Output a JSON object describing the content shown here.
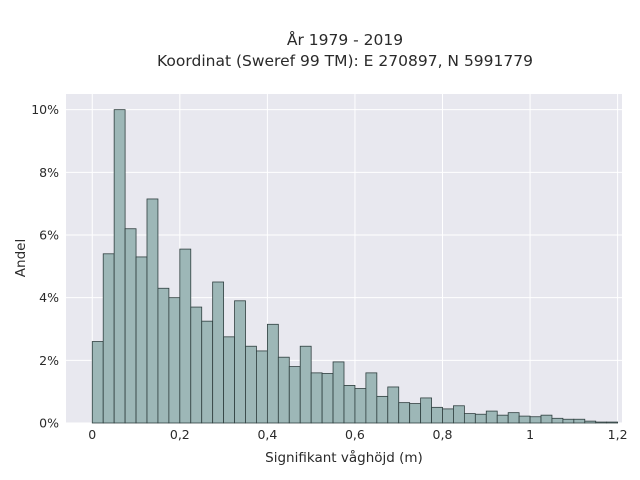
{
  "chart_data": {
    "type": "bar",
    "title_line1": "År 1979 - 2019",
    "title_line2": "Koordinat (Sweref 99 TM): E 270897, N 5991779",
    "xlabel": "Signifikant våghöjd (m)",
    "ylabel": "Andel",
    "xlim": [
      -0.06,
      1.21
    ],
    "ylim": [
      0,
      10.5
    ],
    "x_ticks": [
      0,
      0.2,
      0.4,
      0.6,
      0.8,
      1,
      1.2
    ],
    "x_tick_labels": [
      "0",
      "0,2",
      "0,4",
      "0,6",
      "0,8",
      "1",
      "1,2"
    ],
    "y_ticks": [
      0,
      2,
      4,
      6,
      8,
      10
    ],
    "y_tick_labels": [
      "0%",
      "2%",
      "4%",
      "6%",
      "8%",
      "10%"
    ],
    "bin_start": 0,
    "bin_width": 0.025,
    "values": [
      2.6,
      5.4,
      10.0,
      6.2,
      5.3,
      7.15,
      4.3,
      4.0,
      5.55,
      3.7,
      3.25,
      4.5,
      2.75,
      3.9,
      2.45,
      2.3,
      3.15,
      2.1,
      1.8,
      2.45,
      1.6,
      1.58,
      1.95,
      1.2,
      1.1,
      1.6,
      0.85,
      1.15,
      0.65,
      0.62,
      0.8,
      0.5,
      0.45,
      0.55,
      0.3,
      0.28,
      0.38,
      0.25,
      0.33,
      0.22,
      0.2,
      0.25,
      0.15,
      0.12,
      0.12,
      0.06,
      0.03,
      0.03
    ],
    "grid": true,
    "colors": {
      "bar_fill": "#9db7b7",
      "bar_stroke": "#2f3f3f",
      "plot_bg": "#e8e8ef",
      "grid": "#ffffff"
    }
  }
}
